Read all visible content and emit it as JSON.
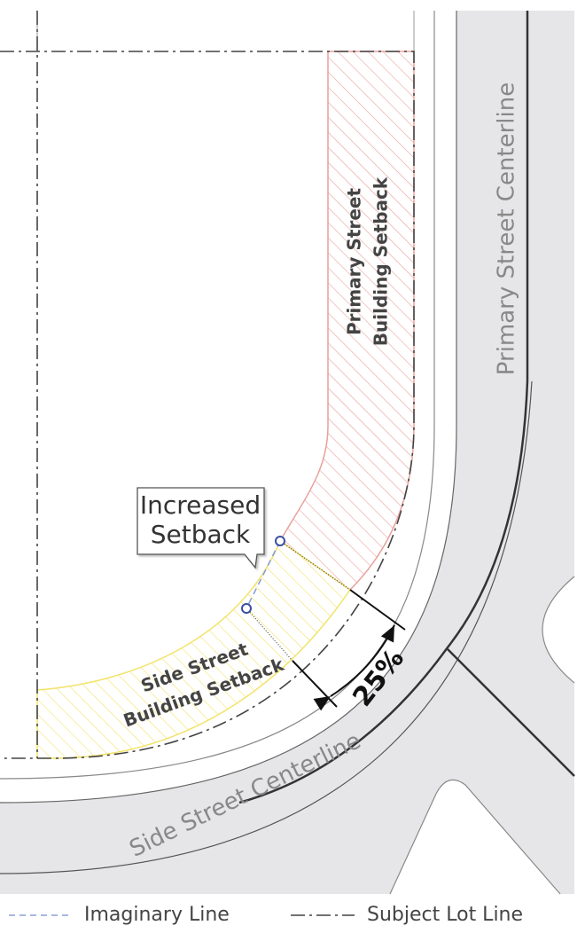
{
  "labels": {
    "callout": [
      "Increased",
      "Setback"
    ],
    "primary_setback": [
      "Primary Street",
      "Building Setback"
    ],
    "side_setback": [
      "Side Street",
      "Building Setback"
    ],
    "dimension": "25%",
    "primary_centerline": "Primary Street Centerline",
    "side_centerline": "Side Street Centerline"
  },
  "legend": [
    {
      "label": "Imaginary Line"
    },
    {
      "label": "Subject Lot Line"
    }
  ]
}
